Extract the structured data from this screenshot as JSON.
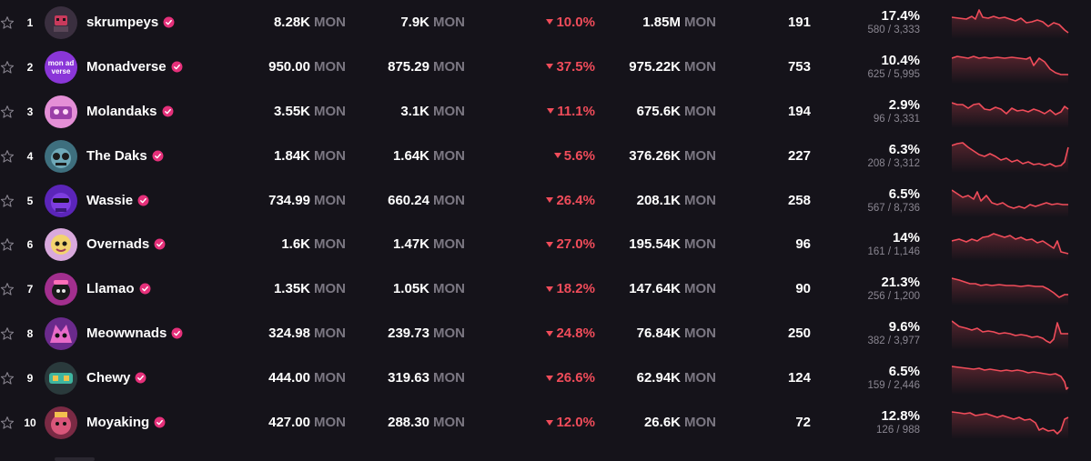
{
  "colors": {
    "background": "#15131a",
    "negative": "#f04c5a",
    "unit": "#7b7782",
    "verified": "#e5307a"
  },
  "units": {
    "currency": "MON"
  },
  "rows": [
    {
      "rank": "1",
      "name": "skrumpeys",
      "avatar_icon": "skrumpeys-avatar-icon",
      "floor": "8.28K",
      "top_offer": "7.9K",
      "change": "10.0%",
      "volume": "1.85M",
      "sales": "191",
      "listed_pct": "17.4%",
      "listed_frac": "580 / 3,333"
    },
    {
      "rank": "2",
      "name": "Monadverse",
      "avatar_icon": "monadverse-avatar-icon",
      "floor": "950.00",
      "top_offer": "875.29",
      "change": "37.5%",
      "volume": "975.22K",
      "sales": "753",
      "listed_pct": "10.4%",
      "listed_frac": "625 / 5,995"
    },
    {
      "rank": "3",
      "name": "Molandaks",
      "avatar_icon": "molandaks-avatar-icon",
      "floor": "3.55K",
      "top_offer": "3.1K",
      "change": "11.1%",
      "volume": "675.6K",
      "sales": "194",
      "listed_pct": "2.9%",
      "listed_frac": "96 / 3,331"
    },
    {
      "rank": "4",
      "name": "The Daks",
      "avatar_icon": "the-daks-avatar-icon",
      "floor": "1.84K",
      "top_offer": "1.64K",
      "change": "5.6%",
      "volume": "376.26K",
      "sales": "227",
      "listed_pct": "6.3%",
      "listed_frac": "208 / 3,312"
    },
    {
      "rank": "5",
      "name": "Wassie",
      "avatar_icon": "wassie-avatar-icon",
      "floor": "734.99",
      "top_offer": "660.24",
      "change": "26.4%",
      "volume": "208.1K",
      "sales": "258",
      "listed_pct": "6.5%",
      "listed_frac": "567 / 8,736"
    },
    {
      "rank": "6",
      "name": "Overnads",
      "avatar_icon": "overnads-avatar-icon",
      "floor": "1.6K",
      "top_offer": "1.47K",
      "change": "27.0%",
      "volume": "195.54K",
      "sales": "96",
      "listed_pct": "14%",
      "listed_frac": "161 / 1,146"
    },
    {
      "rank": "7",
      "name": "Llamao",
      "avatar_icon": "llamao-avatar-icon",
      "floor": "1.35K",
      "top_offer": "1.05K",
      "change": "18.2%",
      "volume": "147.64K",
      "sales": "90",
      "listed_pct": "21.3%",
      "listed_frac": "256 / 1,200"
    },
    {
      "rank": "8",
      "name": "Meowwnads",
      "avatar_icon": "meowwnads-avatar-icon",
      "floor": "324.98",
      "top_offer": "239.73",
      "change": "24.8%",
      "volume": "76.84K",
      "sales": "250",
      "listed_pct": "9.6%",
      "listed_frac": "382 / 3,977"
    },
    {
      "rank": "9",
      "name": "Chewy",
      "avatar_icon": "chewy-avatar-icon",
      "floor": "444.00",
      "top_offer": "319.63",
      "change": "26.6%",
      "volume": "62.94K",
      "sales": "124",
      "listed_pct": "6.5%",
      "listed_frac": "159 / 2,446"
    },
    {
      "rank": "10",
      "name": "Moyaking",
      "avatar_icon": "moyaking-avatar-icon",
      "floor": "427.00",
      "top_offer": "288.30",
      "change": "12.0%",
      "volume": "26.6K",
      "sales": "72",
      "listed_pct": "12.8%",
      "listed_frac": "126 / 988"
    }
  ]
}
